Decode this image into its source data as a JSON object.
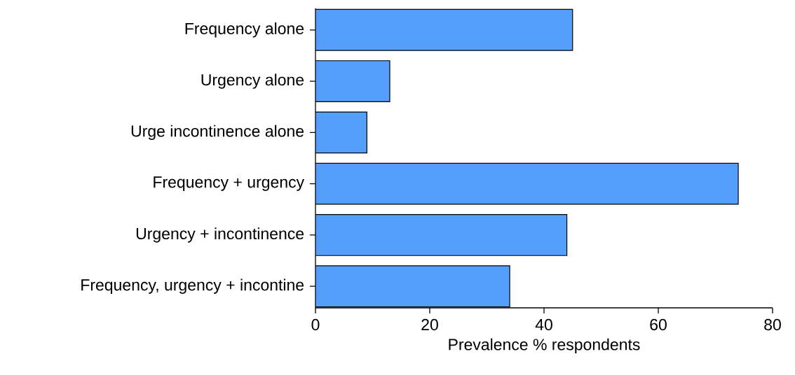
{
  "chart_data": {
    "type": "bar",
    "orientation": "horizontal",
    "categories": [
      "Frequency alone",
      "Urgency alone",
      "Urge incontinence alone",
      "Frequency + urgency",
      "Urgency + incontinence",
      "Frequency, urgency + incontine"
    ],
    "values": [
      45,
      13,
      9,
      74,
      44,
      34
    ],
    "color": "#559ffc",
    "xlabel": "Prevalence % respondents",
    "xlim": [
      0,
      80
    ],
    "xticks": [
      0,
      20,
      40,
      60,
      80
    ]
  }
}
